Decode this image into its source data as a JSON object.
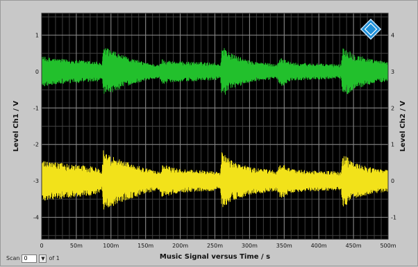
{
  "chart_data": {
    "type": "line",
    "xlabel": "Music Signal versus Time / s",
    "ylabel_left": "Level Ch1 / V",
    "ylabel_right": "Level Ch2 / V",
    "x_range": [
      0,
      0.5
    ],
    "y_left_range": [
      -4.6,
      1.6
    ],
    "y_right_range": [
      -1.6,
      4.6
    ],
    "x_ticks": [
      {
        "value": 0,
        "label": "0"
      },
      {
        "value": 0.05,
        "label": "50m"
      },
      {
        "value": 0.1,
        "label": "100m"
      },
      {
        "value": 0.15,
        "label": "150m"
      },
      {
        "value": 0.2,
        "label": "200m"
      },
      {
        "value": 0.25,
        "label": "250m"
      },
      {
        "value": 0.3,
        "label": "300m"
      },
      {
        "value": 0.35,
        "label": "350m"
      },
      {
        "value": 0.4,
        "label": "400m"
      },
      {
        "value": 0.45,
        "label": "450m"
      },
      {
        "value": 0.5,
        "label": "500m"
      }
    ],
    "y_left_ticks": [
      {
        "value": 1,
        "label": "1"
      },
      {
        "value": 0,
        "label": "0"
      },
      {
        "value": -1,
        "label": "-1"
      },
      {
        "value": -2,
        "label": "-2"
      },
      {
        "value": -3,
        "label": "-3"
      },
      {
        "value": -4,
        "label": "-4"
      }
    ],
    "y_right_ticks": [
      {
        "value": 4,
        "label": "4"
      },
      {
        "value": 3,
        "label": "3"
      },
      {
        "value": 2,
        "label": "2"
      },
      {
        "value": 1,
        "label": "1"
      },
      {
        "value": 0,
        "label": "0"
      },
      {
        "value": -1,
        "label": "-1"
      }
    ],
    "grid": true,
    "grid_minor_x_divisions": 5,
    "grid_minor_y_divisions": 2,
    "background": "#000000",
    "series": [
      {
        "axis": "left",
        "color": "#22c02c",
        "offset": 0,
        "envelope": [
          {
            "t": 0.0,
            "amp": 0.42
          },
          {
            "t": 0.025,
            "amp": 0.35
          },
          {
            "t": 0.05,
            "amp": 0.32
          },
          {
            "t": 0.08,
            "amp": 0.28
          },
          {
            "t": 0.087,
            "amp": 0.2
          },
          {
            "t": 0.089,
            "amp": 0.68
          },
          {
            "t": 0.1,
            "amp": 0.6
          },
          {
            "t": 0.12,
            "amp": 0.42
          },
          {
            "t": 0.15,
            "amp": 0.25
          },
          {
            "t": 0.17,
            "amp": 0.18
          },
          {
            "t": 0.174,
            "amp": 0.35
          },
          {
            "t": 0.185,
            "amp": 0.3
          },
          {
            "t": 0.2,
            "amp": 0.28
          },
          {
            "t": 0.25,
            "amp": 0.25
          },
          {
            "t": 0.258,
            "amp": 0.18
          },
          {
            "t": 0.26,
            "amp": 0.72
          },
          {
            "t": 0.275,
            "amp": 0.48
          },
          {
            "t": 0.3,
            "amp": 0.3
          },
          {
            "t": 0.34,
            "amp": 0.2
          },
          {
            "t": 0.345,
            "amp": 0.42
          },
          {
            "t": 0.36,
            "amp": 0.25
          },
          {
            "t": 0.4,
            "amp": 0.22
          },
          {
            "t": 0.432,
            "amp": 0.2
          },
          {
            "t": 0.435,
            "amp": 0.72
          },
          {
            "t": 0.45,
            "amp": 0.5
          },
          {
            "t": 0.48,
            "amp": 0.32
          },
          {
            "t": 0.5,
            "amp": 0.28
          }
        ]
      },
      {
        "axis": "left",
        "color": "#f2e21a",
        "offset": -3,
        "envelope": [
          {
            "t": 0.0,
            "amp": 0.55
          },
          {
            "t": 0.025,
            "amp": 0.5
          },
          {
            "t": 0.05,
            "amp": 0.45
          },
          {
            "t": 0.08,
            "amp": 0.38
          },
          {
            "t": 0.087,
            "amp": 0.28
          },
          {
            "t": 0.089,
            "amp": 0.85
          },
          {
            "t": 0.1,
            "amp": 0.72
          },
          {
            "t": 0.12,
            "amp": 0.55
          },
          {
            "t": 0.15,
            "amp": 0.35
          },
          {
            "t": 0.17,
            "amp": 0.25
          },
          {
            "t": 0.174,
            "amp": 0.45
          },
          {
            "t": 0.185,
            "amp": 0.4
          },
          {
            "t": 0.2,
            "amp": 0.32
          },
          {
            "t": 0.25,
            "amp": 0.28
          },
          {
            "t": 0.258,
            "amp": 0.22
          },
          {
            "t": 0.26,
            "amp": 0.8
          },
          {
            "t": 0.275,
            "amp": 0.55
          },
          {
            "t": 0.3,
            "amp": 0.38
          },
          {
            "t": 0.34,
            "amp": 0.28
          },
          {
            "t": 0.345,
            "amp": 0.5
          },
          {
            "t": 0.36,
            "amp": 0.32
          },
          {
            "t": 0.4,
            "amp": 0.28
          },
          {
            "t": 0.432,
            "amp": 0.26
          },
          {
            "t": 0.435,
            "amp": 0.75
          },
          {
            "t": 0.45,
            "amp": 0.5
          },
          {
            "t": 0.48,
            "amp": 0.35
          },
          {
            "t": 0.5,
            "amp": 0.3
          }
        ]
      }
    ]
  },
  "logo": {
    "name": "rs-logo-icon",
    "color": "#1e8fd8",
    "text": "R&S"
  },
  "scan": {
    "label": "Scan",
    "value": "0",
    "of_label": "of 1",
    "spin_icon": "spin-down-icon"
  }
}
